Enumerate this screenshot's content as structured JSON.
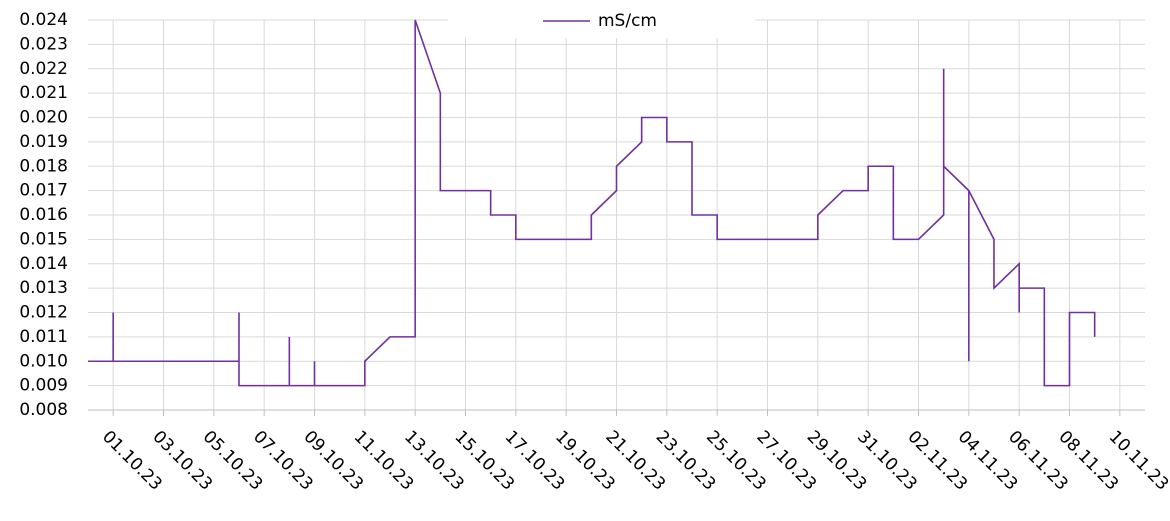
{
  "chart_data": {
    "type": "line",
    "x": [
      "30.09.23",
      "01.10.23",
      "01.10.23",
      "01.10.23",
      "06.10.23",
      "06.10.23",
      "06.10.23",
      "08.10.23",
      "08.10.23",
      "08.10.23",
      "09.10.23",
      "09.10.23",
      "09.10.23",
      "11.10.23",
      "11.10.23",
      "12.10.23",
      "13.10.23",
      "13.10.23",
      "13.10.23",
      "14.10.23",
      "14.10.23",
      "14.10.23",
      "16.10.23",
      "16.10.23",
      "17.10.23",
      "17.10.23",
      "20.10.23",
      "20.10.23",
      "21.10.23",
      "21.10.23",
      "22.10.23",
      "22.10.23",
      "23.10.23",
      "23.10.23",
      "24.10.23",
      "24.10.23",
      "25.10.23",
      "25.10.23",
      "29.10.23",
      "29.10.23",
      "30.10.23",
      "31.10.23",
      "31.10.23",
      "01.11.23",
      "01.11.23",
      "02.11.23",
      "03.11.23",
      "03.11.23",
      "03.11.23",
      "04.11.23",
      "04.11.23",
      "04.11.23",
      "05.11.23",
      "05.11.23",
      "06.11.23",
      "06.11.23",
      "06.11.23",
      "07.11.23",
      "07.11.23",
      "08.11.23",
      "08.11.23",
      "08.11.23",
      "09.11.23",
      "09.11.23"
    ],
    "series": [
      {
        "name": "mS/cm",
        "color": "#7030a0",
        "values": [
          0.01,
          0.01,
          0.012,
          0.01,
          0.01,
          0.012,
          0.009,
          0.009,
          0.011,
          0.009,
          0.009,
          0.01,
          0.009,
          0.009,
          0.01,
          0.011,
          0.011,
          0.019,
          0.024,
          0.021,
          0.018,
          0.017,
          0.017,
          0.016,
          0.016,
          0.015,
          0.015,
          0.016,
          0.017,
          0.018,
          0.019,
          0.02,
          0.02,
          0.019,
          0.019,
          0.016,
          0.016,
          0.015,
          0.015,
          0.016,
          0.017,
          0.017,
          0.018,
          0.018,
          0.015,
          0.015,
          0.016,
          0.022,
          0.018,
          0.017,
          0.01,
          0.017,
          0.015,
          0.013,
          0.014,
          0.012,
          0.013,
          0.013,
          0.009,
          0.009,
          0.011,
          0.012,
          0.012,
          0.011
        ]
      }
    ],
    "xlim": [
      "30.09.23",
      "11.11.23"
    ],
    "xticks": [
      "01.10.23",
      "03.10.23",
      "05.10.23",
      "07.10.23",
      "09.10.23",
      "11.10.23",
      "13.10.23",
      "15.10.23",
      "17.10.23",
      "19.10.23",
      "21.10.23",
      "23.10.23",
      "25.10.23",
      "27.10.23",
      "29.10.23",
      "31.10.23",
      "02.11.23",
      "04.11.23",
      "06.11.23",
      "08.11.23",
      "10.11.23"
    ],
    "ylim": [
      0.008,
      0.024
    ],
    "yticks": [
      0.008,
      0.009,
      {
        "value": 0.01,
        "label": "0.010"
      },
      0.011,
      0.012,
      0.013,
      0.014,
      0.015,
      0.016,
      0.017,
      0.018,
      0.019,
      {
        "value": 0.02,
        "label": "0.020"
      },
      0.021,
      0.022,
      0.023,
      0.024
    ],
    "grid": true,
    "legend": "top"
  }
}
